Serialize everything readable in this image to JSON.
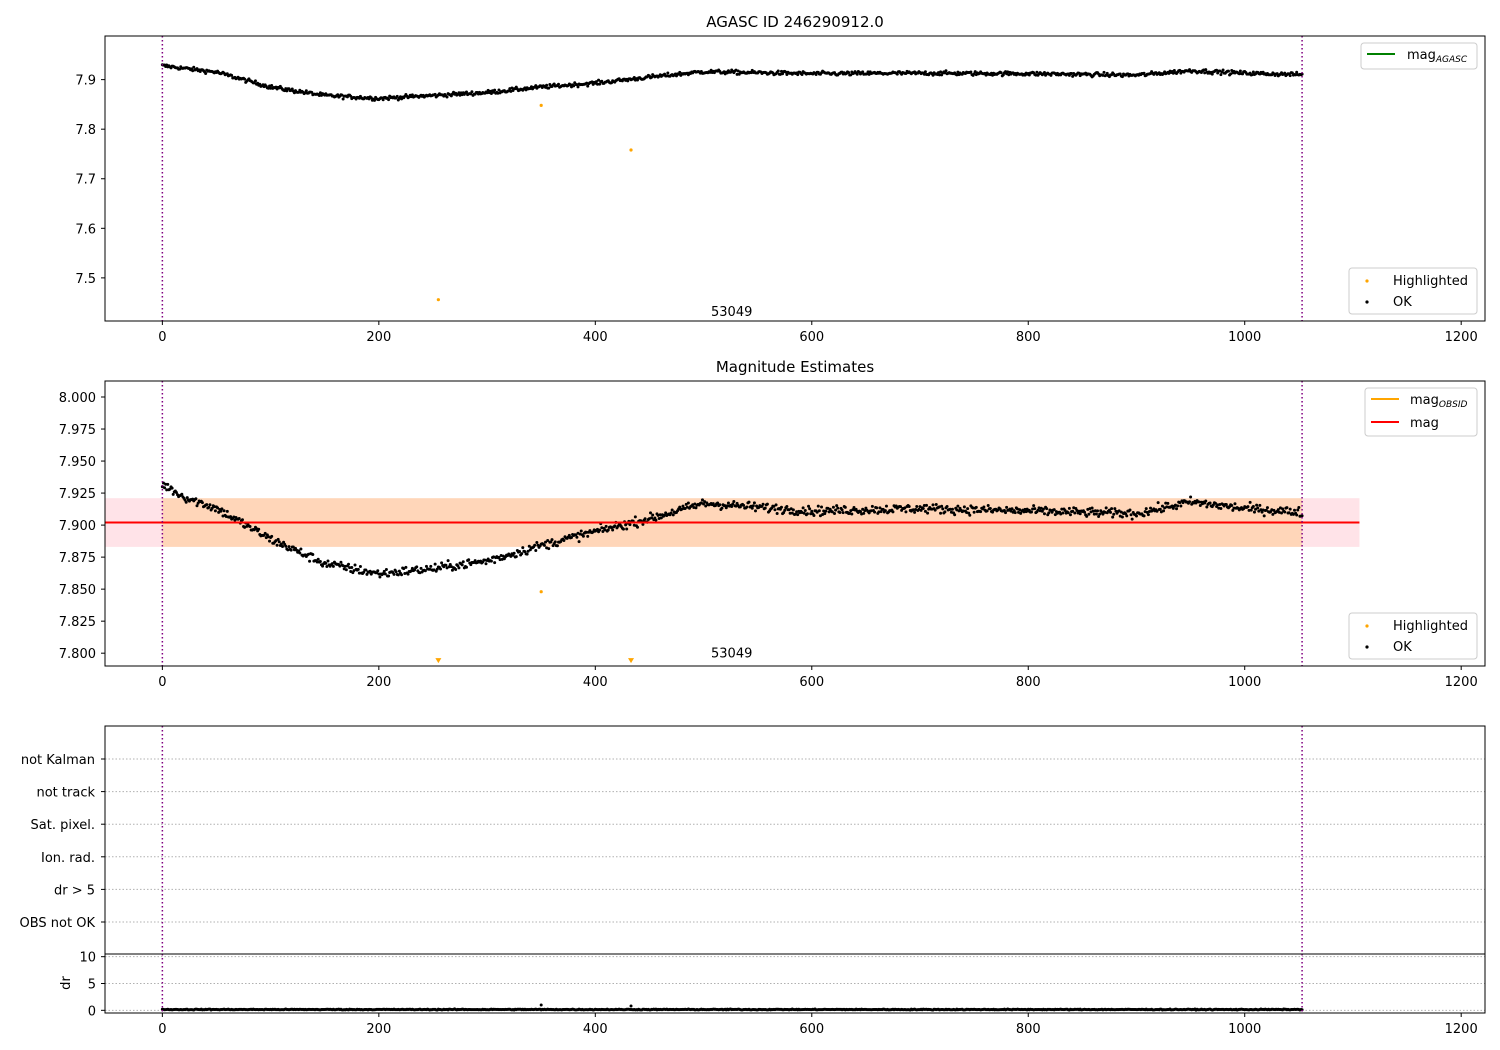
{
  "chart_data": [
    {
      "type": "scatter",
      "title": "AGASC ID 246290912.0",
      "xlabel": "",
      "ylabel": "",
      "xlim": [
        -53,
        1222
      ],
      "ylim": [
        7.413,
        7.988
      ],
      "xticks": [
        0,
        200,
        400,
        600,
        800,
        1000,
        1200
      ],
      "yticks": [
        7.5,
        7.6,
        7.7,
        7.8,
        7.9
      ],
      "vlines": [
        0,
        1053
      ],
      "annotation": {
        "text": "53049",
        "x": 526,
        "y": 7.423
      },
      "legends": [
        {
          "position": "upper right",
          "entries": [
            {
              "label": "mag",
              "sub": "AGASC",
              "color": "#008000",
              "marker": "line"
            }
          ]
        },
        {
          "position": "lower right",
          "entries": [
            {
              "label": "Highlighted",
              "color": "#ffa500",
              "marker": "dot"
            },
            {
              "label": "OK",
              "color": "#000000",
              "marker": "dot"
            }
          ]
        }
      ],
      "series": [
        {
          "name": "OK",
          "color": "#000000",
          "n": 1054,
          "x_range": [
            0,
            1053
          ],
          "trend_x": [
            0,
            50,
            100,
            150,
            200,
            250,
            300,
            350,
            400,
            450,
            500,
            550,
            600,
            700,
            800,
            900,
            950,
            1000,
            1053
          ],
          "trend_y": [
            7.928,
            7.915,
            7.885,
            7.868,
            7.862,
            7.868,
            7.874,
            7.885,
            7.893,
            7.905,
            7.916,
            7.914,
            7.912,
            7.913,
            7.912,
            7.909,
            7.918,
            7.913,
            7.91
          ],
          "noise": 0.004
        },
        {
          "name": "Highlighted",
          "color": "#ffa500",
          "points": [
            [
              350,
              7.848
            ],
            [
              433,
              7.758
            ],
            [
              255,
              7.456
            ]
          ]
        }
      ]
    },
    {
      "type": "scatter",
      "title": "Magnitude Estimates",
      "xlabel": "",
      "ylabel": "",
      "xlim": [
        -53,
        1222
      ],
      "ylim": [
        7.79,
        8.0125
      ],
      "xticks": [
        0,
        200,
        400,
        600,
        800,
        1000,
        1200
      ],
      "yticks": [
        7.8,
        7.825,
        7.85,
        7.875,
        7.9,
        7.925,
        7.95,
        7.975,
        8.0
      ],
      "ytick_labels": [
        "7.800",
        "7.825",
        "7.850",
        "7.875",
        "7.900",
        "7.925",
        "7.950",
        "7.975",
        "8.000"
      ],
      "vlines": [
        0,
        1053
      ],
      "annotation": {
        "text": "53049",
        "x": 526,
        "y": 7.7965
      },
      "mag_line": {
        "y": 7.902,
        "color": "#ff0000"
      },
      "mag_band": {
        "y0": 7.883,
        "y1": 7.921,
        "x0": -53,
        "x1": 1106,
        "color": "#ffc0cb"
      },
      "obsid_band": {
        "y0": 7.883,
        "y1": 7.921,
        "x0": 0,
        "x1": 1053,
        "color": "#ffa500"
      },
      "obsid_line": {
        "y": 7.902,
        "color": "#ffa500"
      },
      "legends": [
        {
          "position": "upper right",
          "entries": [
            {
              "label": "mag",
              "sub": "OBSID",
              "color": "#ffa500",
              "marker": "line"
            },
            {
              "label": "mag",
              "color": "#ff0000",
              "marker": "line"
            }
          ]
        },
        {
          "position": "lower right",
          "entries": [
            {
              "label": "Highlighted",
              "color": "#ffa500",
              "marker": "dot"
            },
            {
              "label": "OK",
              "color": "#000000",
              "marker": "dot"
            }
          ]
        }
      ],
      "series": [
        {
          "name": "OK",
          "color": "#000000",
          "n": 1054,
          "x_range": [
            0,
            1053
          ],
          "trend_x": [
            0,
            20,
            50,
            100,
            150,
            200,
            250,
            300,
            350,
            400,
            450,
            500,
            550,
            600,
            700,
            800,
            900,
            950,
            1000,
            1053
          ],
          "trend_y": [
            7.932,
            7.922,
            7.913,
            7.889,
            7.87,
            7.862,
            7.866,
            7.872,
            7.884,
            7.895,
            7.905,
            7.917,
            7.914,
            7.911,
            7.913,
            7.911,
            7.909,
            7.918,
            7.913,
            7.91
          ],
          "noise": 0.0035
        },
        {
          "name": "Highlighted",
          "color": "#ffa500",
          "points": [
            [
              350,
              7.848
            ]
          ]
        },
        {
          "name": "Highlighted (off-scale)",
          "color": "#ffa500",
          "marker": "triangle-down",
          "points": [
            [
              255,
              7.793
            ],
            [
              433,
              7.793
            ]
          ]
        }
      ]
    },
    {
      "type": "scatter",
      "title": "",
      "xlabel": "",
      "ylabel": "",
      "xlim": [
        -53,
        1222
      ],
      "categories": [
        "not Kalman",
        "not track",
        "Sat. pixel.",
        "Ion. rad.",
        "dr > 5",
        "OBS not OK"
      ],
      "vlines": [
        0,
        1053
      ],
      "series": []
    },
    {
      "type": "scatter",
      "title": "",
      "xlabel": "",
      "ylabel": "dr",
      "xlim": [
        -53,
        1222
      ],
      "ylim": [
        -0.5,
        10.5
      ],
      "xticks": [
        0,
        200,
        400,
        600,
        800,
        1000,
        1200
      ],
      "yticks": [
        0,
        5,
        10
      ],
      "vlines": [
        0,
        1053
      ],
      "series": [
        {
          "name": "dr",
          "color": "#000000",
          "n": 1054,
          "x_range": [
            0,
            1053
          ],
          "trend_x": [
            0,
            1053
          ],
          "trend_y": [
            0.15,
            0.15
          ],
          "noise": 0.08,
          "extra_points": [
            [
              350,
              1.0
            ],
            [
              433,
              0.8
            ]
          ]
        }
      ]
    }
  ]
}
